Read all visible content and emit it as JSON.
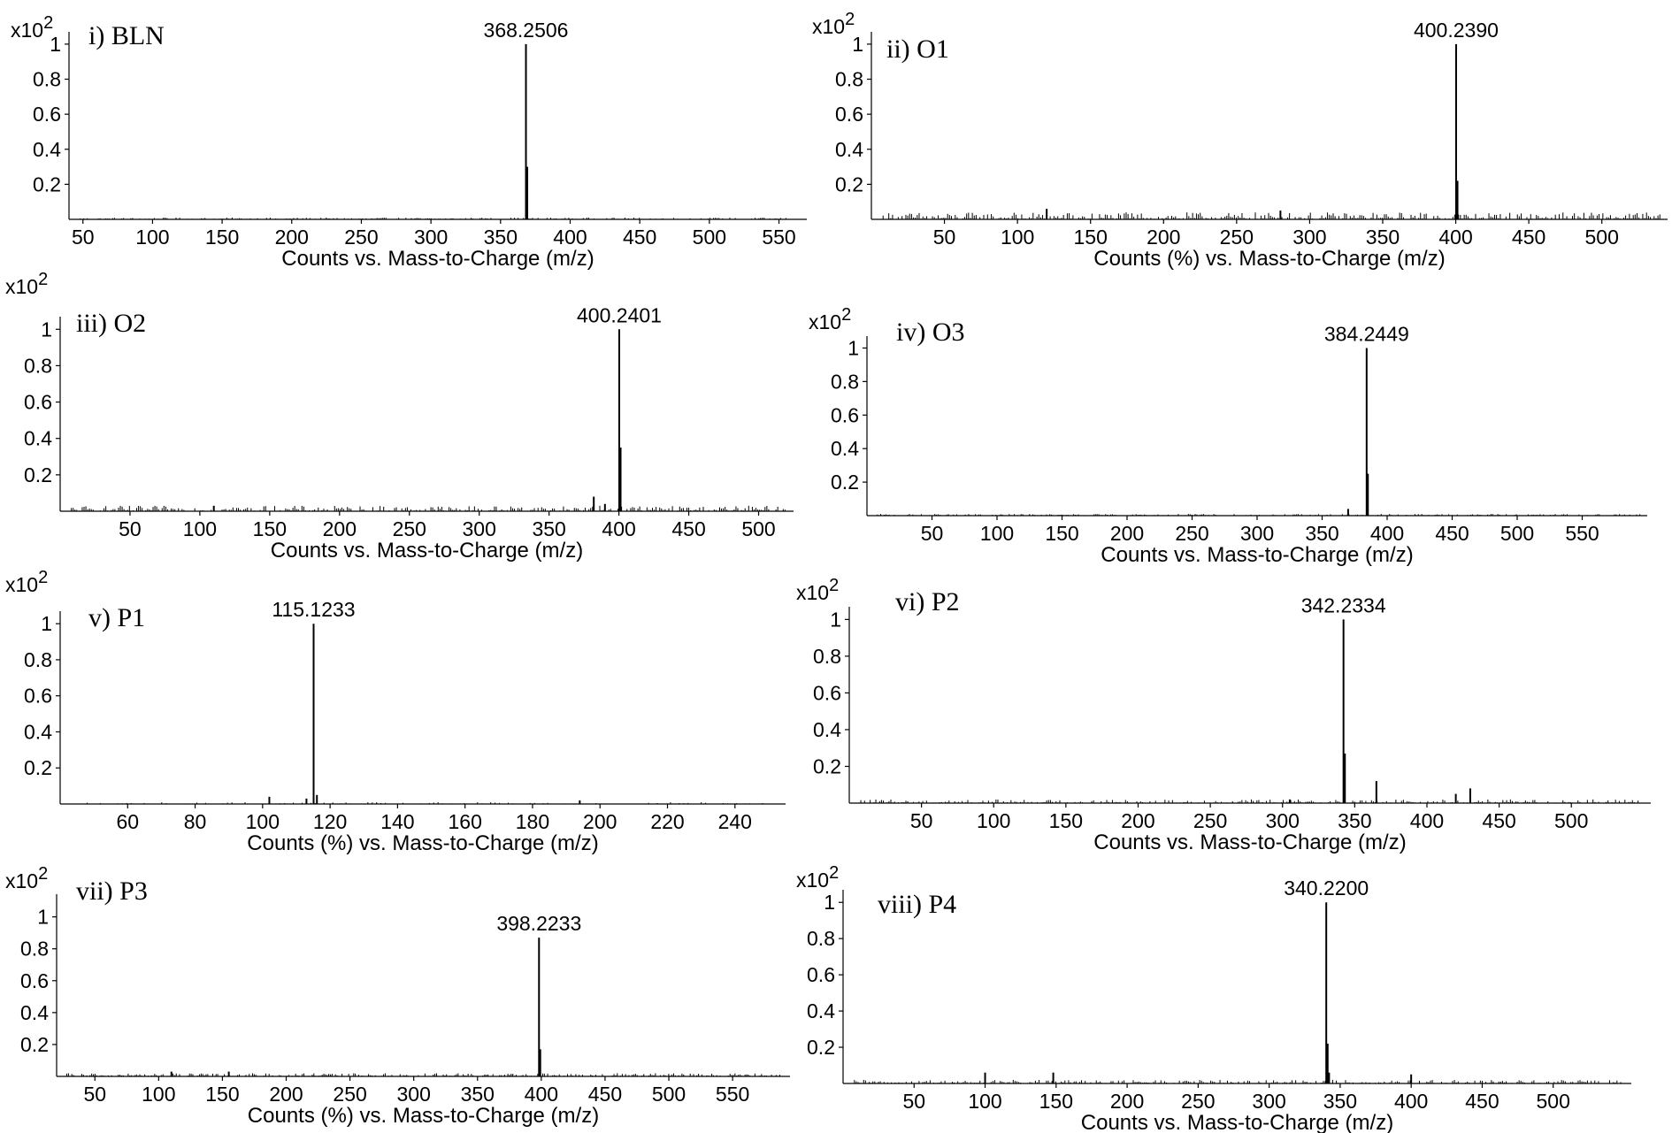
{
  "figure": {
    "scale_base": "x10",
    "scale_exp": "2",
    "colors": {
      "line": "#000000",
      "background": "#ffffff"
    }
  },
  "chart_data": [
    {
      "type": "bar",
      "panel": "i) BLN",
      "xlabel": "Counts vs. Mass-to-Charge (m/z)",
      "ylabel": "x10^2",
      "yticks": [
        "0.2",
        "0.4",
        "0.6",
        "0.8",
        "1"
      ],
      "xticks": [
        50,
        100,
        150,
        200,
        250,
        300,
        350,
        400,
        450,
        500,
        550
      ],
      "xlim": [
        40,
        570
      ],
      "ylim": [
        0,
        1.05
      ],
      "peak_label": "368.2506",
      "peaks": [
        {
          "x": 368.25,
          "y": 1.0
        },
        {
          "x": 369.2,
          "y": 0.3
        }
      ],
      "noise_level": 0.01
    },
    {
      "type": "bar",
      "panel": "ii) O1",
      "xlabel": "Counts (%) vs. Mass-to-Charge (m/z)",
      "ylabel": "x10^2",
      "yticks": [
        "0.2",
        "0.4",
        "0.6",
        "0.8",
        "1"
      ],
      "xticks": [
        50,
        100,
        150,
        200,
        250,
        300,
        350,
        400,
        450,
        500
      ],
      "xlim": [
        0,
        545
      ],
      "ylim": [
        0,
        1.05
      ],
      "peak_label": "400.2390",
      "peaks": [
        {
          "x": 400.24,
          "y": 1.0
        },
        {
          "x": 401.2,
          "y": 0.22
        },
        {
          "x": 120,
          "y": 0.06
        },
        {
          "x": 280,
          "y": 0.05
        }
      ],
      "noise_level": 0.04
    },
    {
      "type": "bar",
      "panel": "iii) O2",
      "xlabel": "Counts vs. Mass-to-Charge (m/z)",
      "ylabel": "x10^2",
      "yticks": [
        "0.2",
        "0.4",
        "0.6",
        "0.8",
        "1"
      ],
      "xticks": [
        50,
        100,
        150,
        200,
        250,
        300,
        350,
        400,
        450,
        500
      ],
      "xlim": [
        0,
        525
      ],
      "ylim": [
        0,
        1.05
      ],
      "peak_label": "400.2401",
      "peaks": [
        {
          "x": 400.24,
          "y": 1.0
        },
        {
          "x": 401.2,
          "y": 0.35
        },
        {
          "x": 382,
          "y": 0.08
        },
        {
          "x": 390,
          "y": 0.04
        },
        {
          "x": 110,
          "y": 0.03
        }
      ],
      "noise_level": 0.03
    },
    {
      "type": "bar",
      "panel": "iv) O3",
      "xlabel": "Counts vs. Mass-to-Charge (m/z)",
      "ylabel": "x10^2",
      "yticks": [
        "0.2",
        "0.4",
        "0.6",
        "0.8",
        "1"
      ],
      "xticks": [
        50,
        100,
        150,
        200,
        250,
        300,
        350,
        400,
        450,
        500,
        550
      ],
      "xlim": [
        0,
        600
      ],
      "ylim": [
        0,
        1.05
      ],
      "peak_label": "384.2449",
      "peaks": [
        {
          "x": 384.24,
          "y": 1.0
        },
        {
          "x": 385.2,
          "y": 0.25
        },
        {
          "x": 370,
          "y": 0.04
        }
      ],
      "noise_level": 0.01
    },
    {
      "type": "bar",
      "panel": "v) P1",
      "xlabel": "Counts (%) vs. Mass-to-Charge (m/z)",
      "ylabel": "x10^2",
      "yticks": [
        "0.2",
        "0.4",
        "0.6",
        "0.8",
        "1"
      ],
      "xticks": [
        60,
        80,
        100,
        120,
        140,
        160,
        180,
        200,
        220,
        240
      ],
      "xlim": [
        40,
        255
      ],
      "ylim": [
        0,
        1.05
      ],
      "peak_label": "115.1233",
      "peaks": [
        {
          "x": 115.12,
          "y": 1.0
        },
        {
          "x": 116.1,
          "y": 0.05
        },
        {
          "x": 102,
          "y": 0.04
        },
        {
          "x": 113,
          "y": 0.03
        },
        {
          "x": 194,
          "y": 0.02
        }
      ],
      "noise_level": 0.01
    },
    {
      "type": "bar",
      "panel": "vi) P2",
      "xlabel": "Counts vs. Mass-to-Charge (m/z)",
      "ylabel": "x10^2",
      "yticks": [
        "0.2",
        "0.4",
        "0.6",
        "0.8",
        "1"
      ],
      "xticks": [
        50,
        100,
        150,
        200,
        250,
        300,
        350,
        400,
        450,
        500
      ],
      "xlim": [
        0,
        555
      ],
      "ylim": [
        0,
        1.05
      ],
      "peak_label": "342.2334",
      "peaks": [
        {
          "x": 342.23,
          "y": 1.0
        },
        {
          "x": 343.2,
          "y": 0.27
        },
        {
          "x": 365,
          "y": 0.12
        },
        {
          "x": 430,
          "y": 0.08
        },
        {
          "x": 420,
          "y": 0.05
        },
        {
          "x": 305,
          "y": 0.02
        }
      ],
      "noise_level": 0.02
    },
    {
      "type": "bar",
      "panel": "vii) P3",
      "xlabel": "Counts (%) vs. Mass-to-Charge (m/z)",
      "ylabel": "x10^2",
      "yticks": [
        "0.2",
        "0.4",
        "0.6",
        "0.8",
        "1"
      ],
      "xticks": [
        50,
        100,
        150,
        200,
        250,
        300,
        350,
        400,
        450,
        500,
        550
      ],
      "xlim": [
        20,
        595
      ],
      "ylim": [
        0,
        1.12
      ],
      "peak_label": "398.2233",
      "peaks": [
        {
          "x": 398.22,
          "y": 0.87
        },
        {
          "x": 399.2,
          "y": 0.17
        },
        {
          "x": 155,
          "y": 0.03
        },
        {
          "x": 110,
          "y": 0.03
        }
      ],
      "noise_level": 0.02
    },
    {
      "type": "bar",
      "panel": "viii) P4",
      "xlabel": "Counts vs. Mass-to-Charge (m/z)",
      "ylabel": "x10^2",
      "yticks": [
        "0.2",
        "0.4",
        "0.6",
        "0.8",
        "1"
      ],
      "xticks": [
        50,
        100,
        150,
        200,
        250,
        300,
        350,
        400,
        450,
        500
      ],
      "xlim": [
        0,
        555
      ],
      "ylim": [
        0,
        1.05
      ],
      "peak_label": "340.2200",
      "peaks": [
        {
          "x": 340.22,
          "y": 1.0
        },
        {
          "x": 341.2,
          "y": 0.22
        },
        {
          "x": 342.2,
          "y": 0.06
        },
        {
          "x": 100,
          "y": 0.06
        },
        {
          "x": 148,
          "y": 0.06
        },
        {
          "x": 400,
          "y": 0.05
        }
      ],
      "noise_level": 0.02
    }
  ]
}
